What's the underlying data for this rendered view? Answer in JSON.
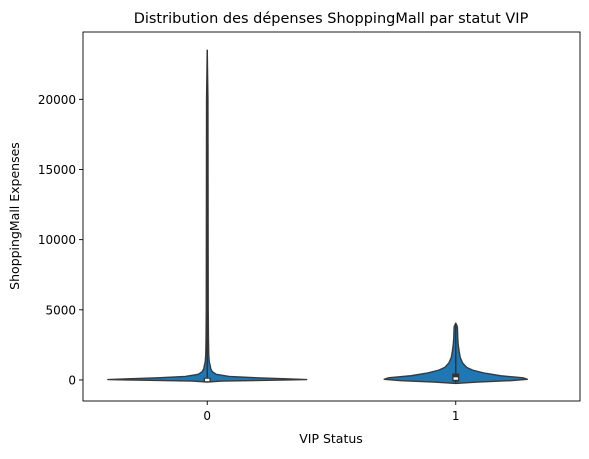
{
  "chart_data": {
    "type": "violin",
    "title": "Distribution des dépenses ShoppingMall par statut VIP",
    "xlabel": "VIP Status",
    "ylabel": "ShoppingMall Expenses",
    "ylim": [
      -1500,
      24800
    ],
    "yticks": [
      0,
      5000,
      10000,
      15000,
      20000
    ],
    "ytick_labels": [
      "0",
      "5000",
      "10000",
      "15000",
      "20000"
    ],
    "categories": [
      "0",
      "1"
    ],
    "grid": false,
    "legend": "none",
    "colors": {
      "violin_fill": "#1f77b4",
      "violin_edge": "#3a3a3a",
      "box": "#333333",
      "median": "#ffffff"
    },
    "violins": [
      {
        "category": "0",
        "max": 23500,
        "min": -150,
        "q1": 0,
        "median": 0,
        "q3": 50,
        "density_halfwidth": [
          [
            -150,
            0.0
          ],
          [
            -80,
            0.15
          ],
          [
            0,
            0.82
          ],
          [
            30,
            1.0
          ],
          [
            80,
            0.8
          ],
          [
            150,
            0.5
          ],
          [
            250,
            0.22
          ],
          [
            400,
            0.09
          ],
          [
            600,
            0.05
          ],
          [
            800,
            0.035
          ],
          [
            1000,
            0.03
          ],
          [
            1300,
            0.02
          ],
          [
            1800,
            0.015
          ],
          [
            3000,
            0.012
          ],
          [
            5000,
            0.01
          ],
          [
            10000,
            0.009
          ],
          [
            15000,
            0.008
          ],
          [
            20000,
            0.007
          ],
          [
            23500,
            0.0
          ]
        ]
      },
      {
        "category": "1",
        "max": 4050,
        "min": -250,
        "q1": 0,
        "median": 100,
        "q3": 350,
        "density_halfwidth": [
          [
            -250,
            0.0
          ],
          [
            -150,
            0.22
          ],
          [
            -50,
            0.55
          ],
          [
            50,
            0.72
          ],
          [
            150,
            0.68
          ],
          [
            300,
            0.45
          ],
          [
            500,
            0.28
          ],
          [
            700,
            0.17
          ],
          [
            900,
            0.11
          ],
          [
            1200,
            0.07
          ],
          [
            1600,
            0.045
          ],
          [
            2000,
            0.035
          ],
          [
            2500,
            0.025
          ],
          [
            3000,
            0.02
          ],
          [
            3500,
            0.018
          ],
          [
            3800,
            0.016
          ],
          [
            4050,
            0.0
          ]
        ]
      }
    ]
  }
}
